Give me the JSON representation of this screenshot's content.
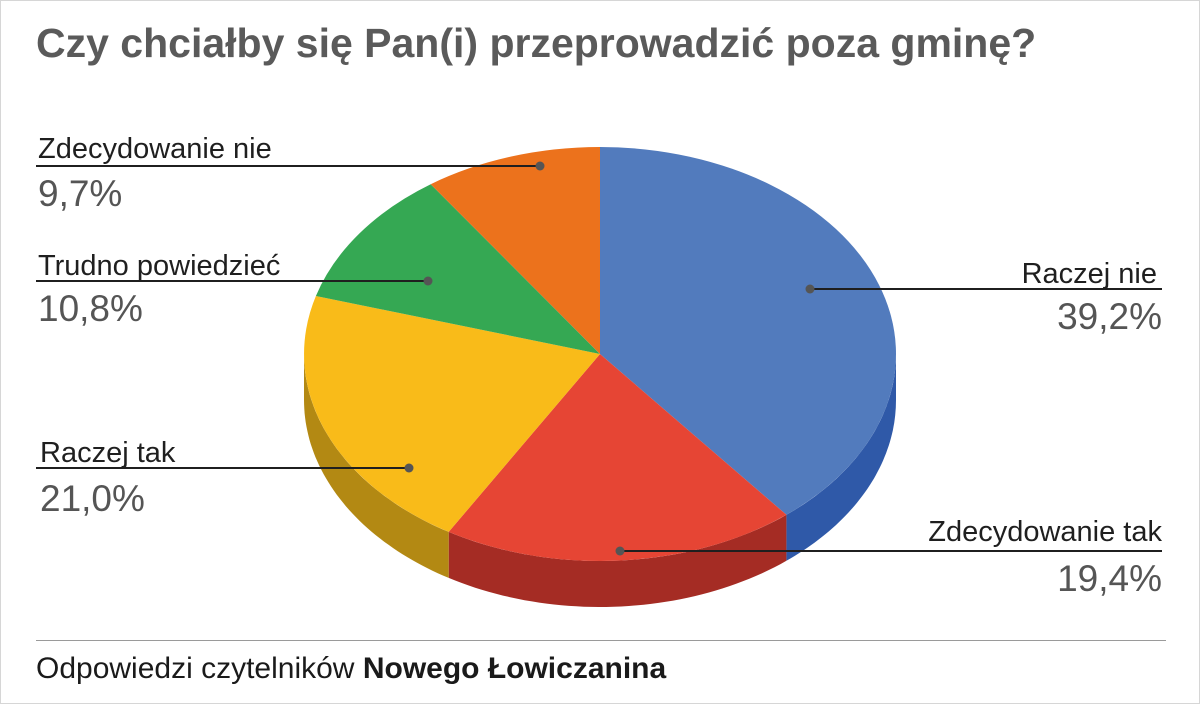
{
  "title": "Czy chciałby się Pan(i) przeprowadzić poza gminę?",
  "footer": {
    "prefix": "Odpowiedzi czytelników",
    "brand": "Nowego Łowiczanina"
  },
  "chart_data": {
    "type": "pie",
    "title": "Czy chciałby się Pan(i) przeprowadzić poza gminę?",
    "three_d": true,
    "slices": [
      {
        "label": "Raczej nie",
        "value": 39.2,
        "value_label": "39,2%",
        "color": "#527bbd",
        "side_color": "#2f59a8"
      },
      {
        "label": "Zdecydowanie tak",
        "value": 19.4,
        "value_label": "19,4%",
        "color": "#e64534",
        "side_color": "#a52c24"
      },
      {
        "label": "Raczej tak",
        "value": 21.0,
        "value_label": "21,0%",
        "color": "#f9bb19",
        "side_color": "#b38913"
      },
      {
        "label": "Trudno powiedzieć",
        "value": 10.8,
        "value_label": "10,8%",
        "color": "#35a853",
        "side_color": "#267a3c"
      },
      {
        "label": "Zdecydowanie nie",
        "value": 9.7,
        "value_label": "9,7%",
        "color": "#ec721c",
        "side_color": "#a85114"
      }
    ]
  }
}
